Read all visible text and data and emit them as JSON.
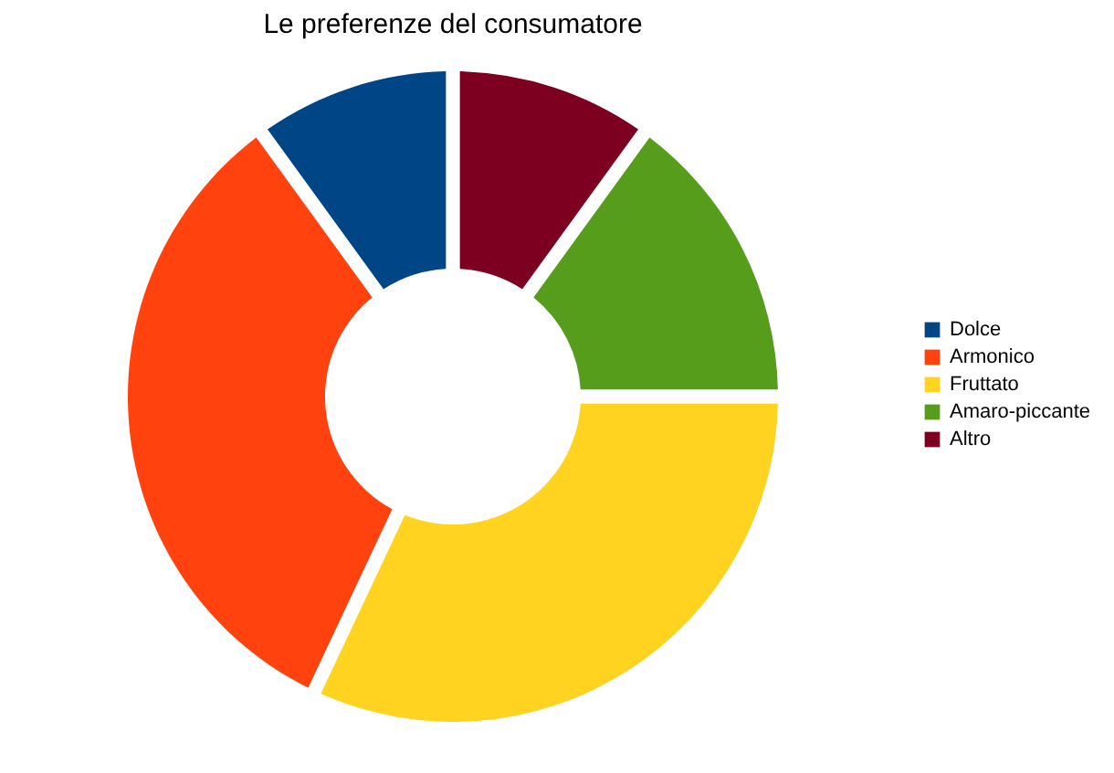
{
  "chart_data": {
    "type": "donut",
    "title": "Le preferenze del consumatore",
    "categories": [
      "Dolce",
      "Armonico",
      "Fruttato",
      "Amaro-piccante",
      "Altro"
    ],
    "values": [
      10,
      33,
      32,
      15,
      10
    ],
    "colors": [
      "#004586",
      "#ff420e",
      "#ffd320",
      "#579d1c",
      "#7e0021"
    ],
    "legend": "right"
  }
}
